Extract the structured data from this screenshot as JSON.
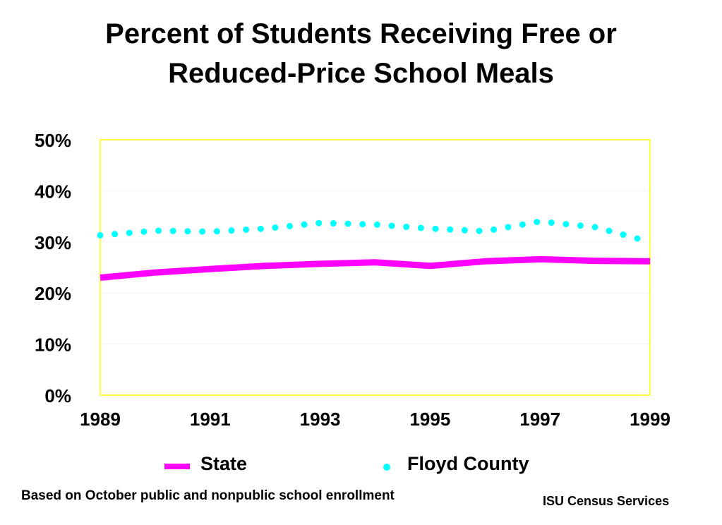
{
  "title": {
    "line1": "Percent of Students Receiving Free or",
    "line2": "Reduced-Price School Meals"
  },
  "chart_data": {
    "type": "line",
    "title": "Percent of Students Receiving Free or Reduced-Price School Meals",
    "xlabel": "",
    "ylabel": "",
    "xlim": [
      1989,
      1999
    ],
    "ylim": [
      0,
      50
    ],
    "x_ticks": [
      "1989",
      "1991",
      "1993",
      "1995",
      "1997",
      "1999"
    ],
    "y_ticks": [
      "0%",
      "10%",
      "20%",
      "30%",
      "40%",
      "50%"
    ],
    "plot_border_color": "#ffff00",
    "legend_placement": "bottom",
    "series": [
      {
        "name": "State",
        "style": "solid",
        "color": "#ff00ff",
        "x": [
          1989,
          1990,
          1991,
          1992,
          1993,
          1994,
          1995,
          1996,
          1997,
          1998,
          1999
        ],
        "y": [
          23.0,
          24.0,
          24.7,
          25.3,
          25.7,
          26.0,
          25.3,
          26.2,
          26.6,
          26.3,
          26.2
        ]
      },
      {
        "name": "Floyd County",
        "style": "dotted",
        "color": "#00ffff",
        "x": [
          1989,
          1990,
          1991,
          1992,
          1993,
          1994,
          1995,
          1996,
          1997,
          1998,
          1999
        ],
        "y": [
          31.3,
          32.2,
          32.0,
          32.6,
          33.7,
          33.4,
          32.6,
          32.1,
          34.0,
          32.9,
          30.0
        ]
      }
    ]
  },
  "footnote": "Based on October public and nonpublic school enrollment",
  "credit": "ISU Census Services"
}
